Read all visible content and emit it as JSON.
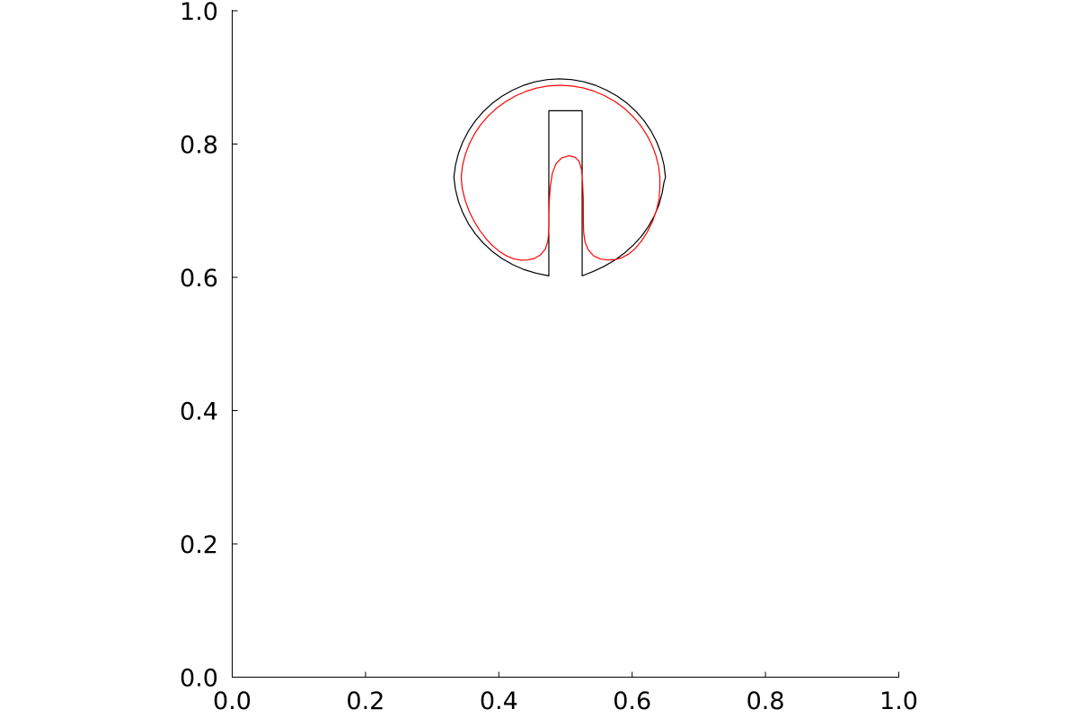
{
  "chart_data": {
    "type": "line",
    "title": "",
    "xlabel": "",
    "ylabel": "",
    "xlim": [
      0.0,
      1.0
    ],
    "ylim": [
      0.0,
      1.0
    ],
    "x_ticks": [
      "0.0",
      "0.2",
      "0.4",
      "0.6",
      "0.8",
      "1.0"
    ],
    "y_ticks": [
      "0.0",
      "0.2",
      "0.4",
      "0.6",
      "0.8",
      "1.0"
    ],
    "grid": false,
    "legend": "none",
    "series": [
      {
        "color": "#000000",
        "points": [
          [
            0.525,
            0.6022
          ],
          [
            0.5412,
            0.6087
          ],
          [
            0.5579,
            0.6164
          ],
          [
            0.5739,
            0.6258
          ],
          [
            0.5884,
            0.6364
          ],
          [
            0.6017,
            0.6483
          ],
          [
            0.6139,
            0.6616
          ],
          [
            0.6245,
            0.6765
          ],
          [
            0.6333,
            0.6924
          ],
          [
            0.6402,
            0.7088
          ],
          [
            0.645,
            0.7264
          ],
          [
            0.6478,
            0.7429
          ],
          [
            0.65,
            0.75
          ],
          [
            0.6478,
            0.7684
          ],
          [
            0.6433,
            0.7862
          ],
          [
            0.6368,
            0.8032
          ],
          [
            0.6284,
            0.8194
          ],
          [
            0.6182,
            0.8345
          ],
          [
            0.6063,
            0.8484
          ],
          [
            0.5928,
            0.8609
          ],
          [
            0.5779,
            0.8717
          ],
          [
            0.5618,
            0.8808
          ],
          [
            0.5449,
            0.8882
          ],
          [
            0.5274,
            0.8935
          ],
          [
            0.5093,
            0.8967
          ],
          [
            0.491,
            0.8978
          ],
          [
            0.4728,
            0.8967
          ],
          [
            0.4548,
            0.8935
          ],
          [
            0.4373,
            0.8882
          ],
          [
            0.4205,
            0.8808
          ],
          [
            0.4046,
            0.8717
          ],
          [
            0.3898,
            0.8609
          ],
          [
            0.3764,
            0.8484
          ],
          [
            0.3645,
            0.8345
          ],
          [
            0.3543,
            0.8194
          ],
          [
            0.3459,
            0.8032
          ],
          [
            0.3394,
            0.7862
          ],
          [
            0.3349,
            0.7684
          ],
          [
            0.3325,
            0.75
          ],
          [
            0.3349,
            0.7318
          ],
          [
            0.3394,
            0.7139
          ],
          [
            0.3459,
            0.6969
          ],
          [
            0.3543,
            0.6806
          ],
          [
            0.3645,
            0.6655
          ],
          [
            0.3764,
            0.6516
          ],
          [
            0.3898,
            0.6391
          ],
          [
            0.4046,
            0.6283
          ],
          [
            0.4205,
            0.6192
          ],
          [
            0.4373,
            0.6118
          ],
          [
            0.4548,
            0.6065
          ],
          [
            0.475,
            0.6022
          ],
          [
            0.475,
            0.85
          ],
          [
            0.525,
            0.85
          ],
          [
            0.525,
            0.6022
          ]
        ]
      },
      {
        "color": "#ff0000",
        "points": [
          [
            0.6416,
            0.75
          ],
          [
            0.6395,
            0.7672
          ],
          [
            0.6353,
            0.7838
          ],
          [
            0.6292,
            0.7998
          ],
          [
            0.6213,
            0.8149
          ],
          [
            0.6118,
            0.8291
          ],
          [
            0.6006,
            0.842
          ],
          [
            0.5881,
            0.8537
          ],
          [
            0.5742,
            0.8638
          ],
          [
            0.5591,
            0.8724
          ],
          [
            0.543,
            0.8793
          ],
          [
            0.5263,
            0.8843
          ],
          [
            0.5092,
            0.8872
          ],
          [
            0.4918,
            0.8882
          ],
          [
            0.4745,
            0.8872
          ],
          [
            0.4576,
            0.8843
          ],
          [
            0.4411,
            0.8793
          ],
          [
            0.4254,
            0.8724
          ],
          [
            0.4104,
            0.8638
          ],
          [
            0.3965,
            0.8537
          ],
          [
            0.3839,
            0.842
          ],
          [
            0.3728,
            0.8291
          ],
          [
            0.3633,
            0.8149
          ],
          [
            0.3555,
            0.7998
          ],
          [
            0.3495,
            0.7838
          ],
          [
            0.3454,
            0.7672
          ],
          [
            0.3435,
            0.75
          ],
          [
            0.3452,
            0.7326
          ],
          [
            0.3495,
            0.7154
          ],
          [
            0.3554,
            0.6993
          ],
          [
            0.3627,
            0.6844
          ],
          [
            0.3711,
            0.6708
          ],
          [
            0.3803,
            0.6585
          ],
          [
            0.3901,
            0.6479
          ],
          [
            0.4005,
            0.6391
          ],
          [
            0.4111,
            0.6324
          ],
          [
            0.4218,
            0.6279
          ],
          [
            0.4325,
            0.6258
          ],
          [
            0.443,
            0.626
          ],
          [
            0.4531,
            0.6283
          ],
          [
            0.4625,
            0.6337
          ],
          [
            0.4698,
            0.6426
          ],
          [
            0.4735,
            0.6542
          ],
          [
            0.4748,
            0.667
          ],
          [
            0.4752,
            0.6792
          ],
          [
            0.4752,
            0.6951
          ],
          [
            0.4756,
            0.7131
          ],
          [
            0.4771,
            0.7354
          ],
          [
            0.4803,
            0.7565
          ],
          [
            0.4859,
            0.7708
          ],
          [
            0.4942,
            0.7792
          ],
          [
            0.5048,
            0.7824
          ],
          [
            0.5143,
            0.7803
          ],
          [
            0.5205,
            0.7738
          ],
          [
            0.5241,
            0.7617
          ],
          [
            0.5257,
            0.7403
          ],
          [
            0.5267,
            0.7172
          ],
          [
            0.5268,
            0.6951
          ],
          [
            0.5269,
            0.6795
          ],
          [
            0.5274,
            0.6663
          ],
          [
            0.5292,
            0.6533
          ],
          [
            0.5338,
            0.6417
          ],
          [
            0.5418,
            0.6325
          ],
          [
            0.5519,
            0.6277
          ],
          [
            0.5627,
            0.626
          ],
          [
            0.5735,
            0.6264
          ],
          [
            0.5842,
            0.6293
          ],
          [
            0.5947,
            0.6349
          ],
          [
            0.6047,
            0.6434
          ],
          [
            0.6141,
            0.6545
          ],
          [
            0.6227,
            0.6681
          ],
          [
            0.6303,
            0.6833
          ],
          [
            0.6364,
            0.7002
          ],
          [
            0.6405,
            0.7182
          ],
          [
            0.6416,
            0.7357
          ],
          [
            0.6416,
            0.75
          ]
        ]
      }
    ]
  }
}
